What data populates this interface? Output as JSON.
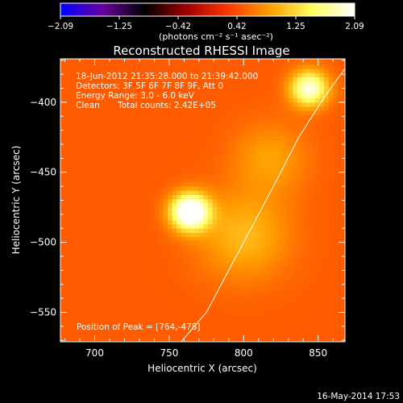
{
  "chart_data": {
    "type": "heatmap",
    "title": "Reconstructed RHESSI Image",
    "xlabel": "Heliocentric X (arcsec)",
    "ylabel": "Heliocentric Y (arcsec)",
    "xlim": [
      677,
      868
    ],
    "ylim": [
      -571,
      -369
    ],
    "x_ticks": [
      700,
      750,
      800,
      850
    ],
    "y_ticks": [
      -550,
      -500,
      -450,
      -400
    ],
    "colorbar": {
      "min": -2.09,
      "max": 2.09,
      "ticks": [
        "-2.09",
        "-1.25",
        "-0.42",
        "0.42",
        "1.25",
        "2.09"
      ],
      "unit_label": "(photons cm⁻² s⁻¹ asec⁻²)",
      "colormap_stops": [
        "#0000ff",
        "#6a00a0",
        "#000000",
        "#a00000",
        "#ff3800",
        "#ffa000",
        "#ffff60",
        "#ffffff"
      ]
    },
    "info": {
      "time_range": "18-Jun-2012 21:35:28.000 to 21:39:42.000",
      "detectors": "Detectors: 3F 5F 6F 7F 8F 9F, Att 0",
      "energy": "Energy Range: 3.0 - 6.0 keV",
      "method": "Clean",
      "total_counts": "Total counts: 2.42E+05"
    },
    "peak_label": "Position of Peak = [764,-478]",
    "sources": [
      {
        "x": 764,
        "y": -478,
        "peak": 2.09,
        "sigma": 9
      },
      {
        "x": 844,
        "y": -390,
        "peak": 1.5,
        "sigma": 9
      },
      {
        "x": 800,
        "y": -495,
        "peak": 0.55,
        "sigma": 22
      },
      {
        "x": 818,
        "y": -440,
        "peak": 0.4,
        "sigma": 18
      }
    ],
    "background_level": 0.5,
    "limb_curve": [
      [
        758,
        -571
      ],
      [
        775,
        -550
      ],
      [
        800,
        -500
      ],
      [
        820,
        -460
      ],
      [
        837,
        -425
      ],
      [
        855,
        -395
      ],
      [
        868,
        -376
      ]
    ]
  },
  "footer_date": "16-May-2014 17:53"
}
